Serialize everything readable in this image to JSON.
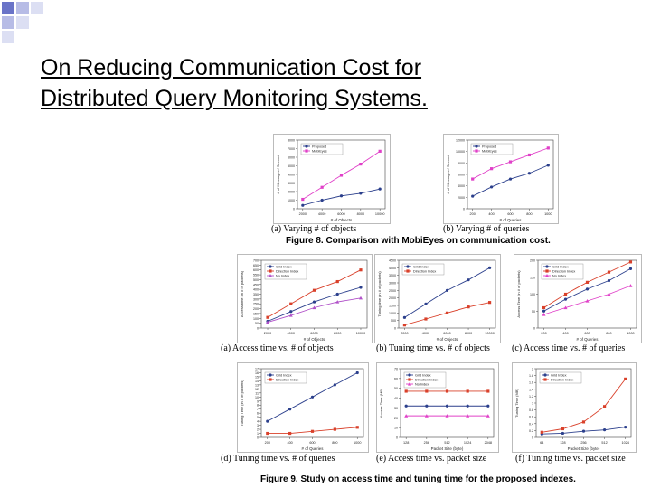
{
  "slide": {
    "title_line1": "On Reducing Communication Cost for",
    "title_line2": "Distributed Query Monitoring Systems."
  },
  "figure8": {
    "caption": "Figure 8. Comparison with MobiEyes on communication cost.",
    "sub_a": "(a) Varying # of objects",
    "sub_b": "(b) Varying # of queries"
  },
  "figure9": {
    "caption": "Figure 9. Study on access time and tuning time for the proposed indexes.",
    "sub_a": "(a) Access time vs. # of objects",
    "sub_b": "(b) Tuning time vs. # of objects",
    "sub_c": "(c) Access time vs. # of queries",
    "sub_d": "(d) Tuning time vs. # of queries",
    "sub_e": "(e) Access time vs. packet size",
    "sub_f": "(f) Tuning time vs. packet size"
  },
  "colors": {
    "blue": "#2b3f8c",
    "pink": "#e040c8",
    "red": "#d9402a",
    "purple": "#b050c8"
  },
  "chart_data": [
    {
      "id": "f8a",
      "type": "line",
      "ylabel": "# of Messages / Second",
      "xlabel": "# of Objects",
      "x": [
        2000,
        4000,
        6000,
        8000,
        10000
      ],
      "xticks": [
        "2000",
        "4000",
        "6000",
        "8000",
        "10000"
      ],
      "yticks": [
        "0",
        "1000",
        "2000",
        "3000",
        "4000",
        "5000",
        "6000",
        "7000",
        "8000"
      ],
      "ylim": [
        0,
        8000
      ],
      "series": [
        {
          "name": "Proposed",
          "color": "#2b3f8c",
          "values": [
            400,
            1000,
            1500,
            1800,
            2300
          ]
        },
        {
          "name": "MobiEyes",
          "color": "#e040c8",
          "values": [
            1100,
            2500,
            3900,
            5200,
            6700
          ]
        }
      ]
    },
    {
      "id": "f8b",
      "type": "line",
      "ylabel": "# of Messages / Second",
      "xlabel": "# of Queries",
      "x": [
        200,
        400,
        600,
        800,
        1000
      ],
      "xticks": [
        "200",
        "400",
        "600",
        "800",
        "1000"
      ],
      "yticks": [
        "0",
        "2000",
        "4000",
        "6000",
        "8000",
        "10000",
        "12000"
      ],
      "ylim": [
        0,
        12000
      ],
      "series": [
        {
          "name": "Proposed",
          "color": "#2b3f8c",
          "values": [
            2200,
            3800,
            5200,
            6200,
            7600
          ]
        },
        {
          "name": "MobiEyes",
          "color": "#e040c8",
          "values": [
            5200,
            7000,
            8200,
            9400,
            10600
          ]
        }
      ]
    },
    {
      "id": "f9a",
      "type": "line",
      "ylabel": "Access time (in # of packets)",
      "xlabel": "# of Objects",
      "x": [
        2000,
        4000,
        6000,
        8000,
        10000
      ],
      "xticks": [
        "2000",
        "4000",
        "6000",
        "8000",
        "10000"
      ],
      "yticks": [
        "0",
        "50",
        "100",
        "150",
        "200",
        "250",
        "300",
        "350",
        "400",
        "450",
        "500",
        "550",
        "600",
        "650",
        "700"
      ],
      "ylim": [
        0,
        700
      ],
      "series": [
        {
          "name": "Grid Index",
          "color": "#2b3f8c",
          "values": [
            70,
            170,
            270,
            350,
            420
          ]
        },
        {
          "name": "Direction Index",
          "color": "#d9402a",
          "values": [
            110,
            250,
            390,
            480,
            600
          ]
        },
        {
          "name": "No Index",
          "color": "#b050c8",
          "values": [
            60,
            130,
            210,
            270,
            310
          ]
        }
      ]
    },
    {
      "id": "f9b",
      "type": "line",
      "ylabel": "Tuning time (in # of packets)",
      "xlabel": "# of Objects",
      "x": [
        2000,
        4000,
        6000,
        8000,
        10000
      ],
      "xticks": [
        "2000",
        "4000",
        "6000",
        "8000",
        "10000"
      ],
      "yticks": [
        "0",
        "500",
        "1000",
        "1500",
        "2000",
        "2500",
        "3000",
        "3500",
        "4000",
        "4500"
      ],
      "ylim": [
        0,
        4500
      ],
      "series": [
        {
          "name": "Grid Index",
          "color": "#2b3f8c",
          "values": [
            700,
            1600,
            2500,
            3200,
            4000
          ]
        },
        {
          "name": "Direction Index",
          "color": "#d9402a",
          "values": [
            200,
            600,
            1000,
            1400,
            1700
          ]
        }
      ]
    },
    {
      "id": "f9c",
      "type": "line",
      "ylabel": "Access Time (in # of packets)",
      "xlabel": "# of Queries",
      "x": [
        200,
        400,
        600,
        800,
        1000
      ],
      "xticks": [
        "200",
        "400",
        "600",
        "800",
        "1000"
      ],
      "yticks": [
        "0",
        "50",
        "100",
        "150",
        "200"
      ],
      "ylim": [
        0,
        200
      ],
      "series": [
        {
          "name": "Grid Index",
          "color": "#2b3f8c",
          "values": [
            50,
            85,
            115,
            140,
            175
          ]
        },
        {
          "name": "Direction Index",
          "color": "#d9402a",
          "values": [
            60,
            100,
            135,
            165,
            195
          ]
        },
        {
          "name": "No Index",
          "color": "#e040c8",
          "values": [
            40,
            60,
            80,
            100,
            125
          ]
        }
      ]
    },
    {
      "id": "f9d",
      "type": "line",
      "ylabel": "Tuning Time (in # of packets)",
      "xlabel": "# of Queries",
      "x": [
        200,
        400,
        600,
        800,
        1000
      ],
      "xticks": [
        "200",
        "400",
        "600",
        "800",
        "1000"
      ],
      "yticks": [
        "0",
        "1",
        "2",
        "3",
        "4",
        "5",
        "6",
        "7",
        "8",
        "9",
        "10",
        "11",
        "12",
        "13",
        "14",
        "15",
        "16",
        "17"
      ],
      "ylim": [
        0,
        17
      ],
      "series": [
        {
          "name": "Grid Index",
          "color": "#2b3f8c",
          "values": [
            4,
            7,
            10,
            13,
            16
          ]
        },
        {
          "name": "Direction Index",
          "color": "#d9402a",
          "values": [
            1,
            1,
            1.5,
            2,
            2.5
          ]
        }
      ]
    },
    {
      "id": "f9e",
      "type": "line",
      "ylabel": "Access Time (MB)",
      "xlabel": "Packet Size (byte)",
      "x": [
        1,
        2,
        3,
        4,
        5
      ],
      "xticks": [
        "128",
        "256",
        "512",
        "1024",
        "2048"
      ],
      "yticks": [
        "0",
        "10",
        "20",
        "30",
        "40",
        "50",
        "60",
        "70"
      ],
      "ylim": [
        0,
        70
      ],
      "series": [
        {
          "name": "Grid Index",
          "color": "#2b3f8c",
          "values": [
            32,
            32,
            32,
            32,
            32
          ]
        },
        {
          "name": "Direction Index",
          "color": "#d9402a",
          "values": [
            47,
            47,
            47,
            47,
            47
          ]
        },
        {
          "name": "No Index",
          "color": "#e040c8",
          "values": [
            22,
            22,
            22,
            22,
            22
          ]
        }
      ]
    },
    {
      "id": "f9f",
      "type": "line",
      "ylabel": "Tuning Time (MB)",
      "xlabel": "Packet Size (byte)",
      "x": [
        1,
        2,
        3,
        4,
        5
      ],
      "xticks": [
        "64",
        "128",
        "256",
        "512",
        "1024"
      ],
      "yticks": [
        "0",
        "0.2",
        "0.4",
        "0.6",
        "0.8",
        "1",
        "1.2",
        "1.4",
        "1.6",
        "1.8",
        "2"
      ],
      "ylim": [
        0,
        2
      ],
      "series": [
        {
          "name": "Grid Index",
          "color": "#2b3f8c",
          "values": [
            0.1,
            0.12,
            0.18,
            0.22,
            0.3
          ]
        },
        {
          "name": "Direction Index",
          "color": "#d9402a",
          "values": [
            0.15,
            0.25,
            0.45,
            0.9,
            1.7
          ]
        }
      ]
    }
  ]
}
